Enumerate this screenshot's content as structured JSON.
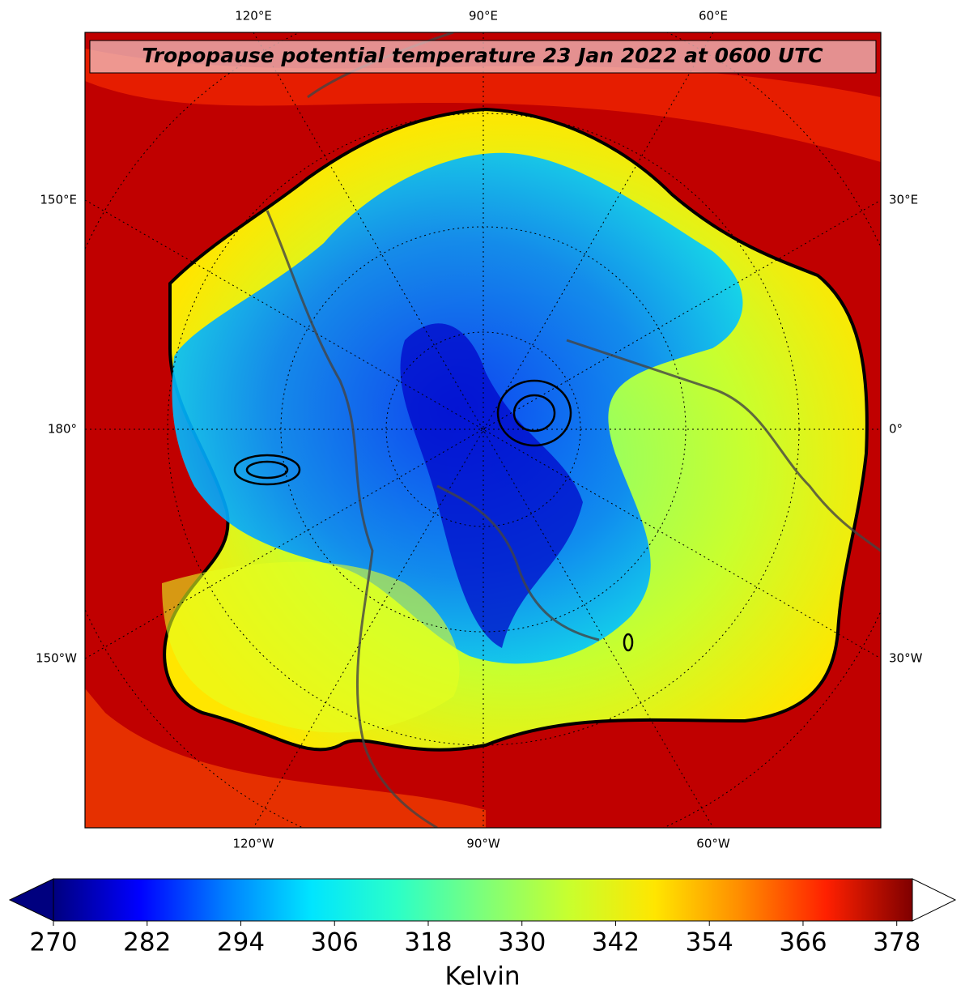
{
  "title": "Tropopause potential temperature 23 Jan 2022 at 0600 UTC",
  "map": {
    "top_labels": [
      "120°E",
      "90°E",
      "60°E"
    ],
    "bottom_labels": [
      "120°W",
      "90°W",
      "60°W"
    ],
    "left_labels": [
      "150°E",
      "180°",
      "150°W"
    ],
    "right_labels": [
      "30°E",
      "0°",
      "30°W"
    ]
  },
  "colorbar": {
    "label": "Kelvin",
    "range": [
      270,
      380
    ],
    "ticks": [
      270,
      282,
      294,
      306,
      318,
      330,
      342,
      354,
      366,
      378
    ],
    "colors": [
      "#00007f",
      "#0000ff",
      "#007fff",
      "#00e5ff",
      "#2bffc8",
      "#7dff7a",
      "#c8ff2e",
      "#ffe600",
      "#ff8c00",
      "#ff2000",
      "#7f0000"
    ],
    "under_color": "#00007f",
    "over_color": "#ffffff"
  }
}
